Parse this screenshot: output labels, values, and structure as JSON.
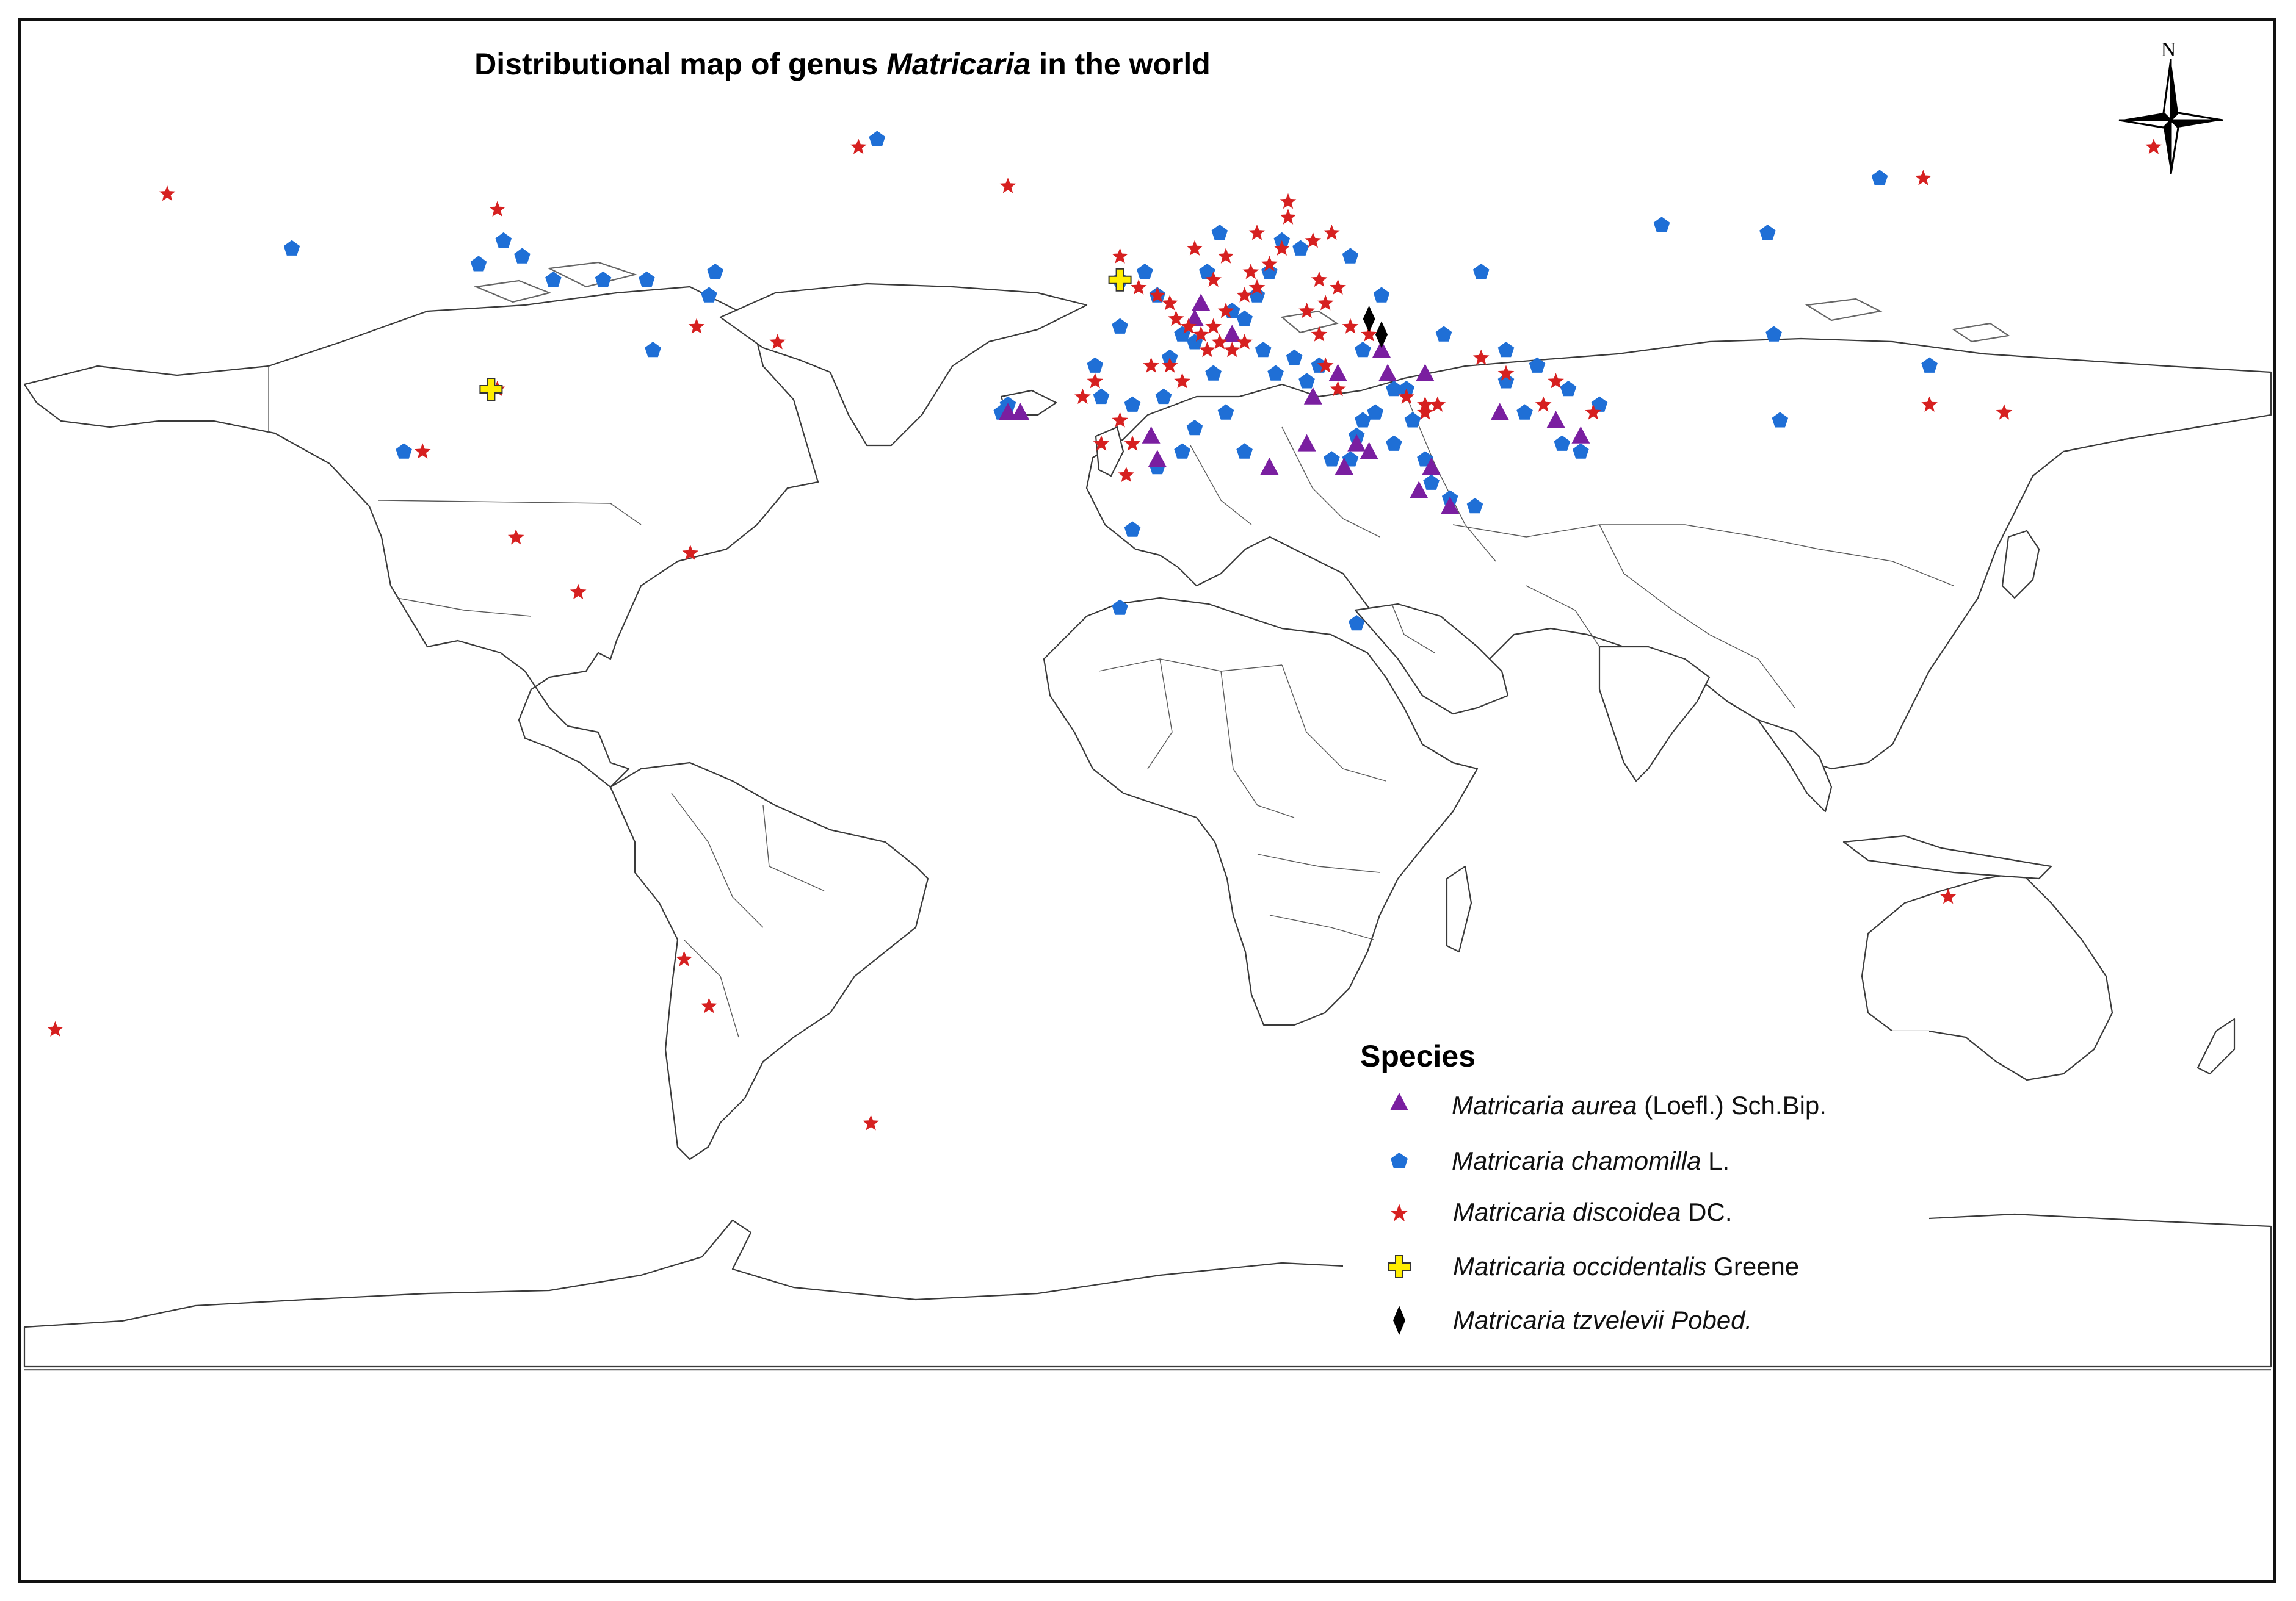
{
  "map": {
    "title_prefix": "Distributional map of genus ",
    "title_genus": "Matricaria",
    "title_suffix": " in the world",
    "north_label": "N"
  },
  "legend": {
    "title": "Species",
    "items": [
      {
        "key": "aurea",
        "italic": "Matricaria aurea",
        "author": " (Loefl.) Sch.Bip.",
        "symbol": "triangle",
        "color": "#7a1fa0"
      },
      {
        "key": "chamomilla",
        "italic": "Matricaria chamomilla",
        "author": " L.",
        "symbol": "pentagon",
        "color": "#1f6fd6"
      },
      {
        "key": "discoidea",
        "italic": "Matricaria discoidea",
        "author": " DC.",
        "symbol": "star",
        "color": "#d62020"
      },
      {
        "key": "occidentalis",
        "italic": "Matricaria occidentalis",
        "author": " Greene",
        "symbol": "cross",
        "color": "#ffee00"
      },
      {
        "key": "tzvelevii",
        "italic": "Matricaria tzvelevii Pobed.",
        "author": "",
        "symbol": "diamond",
        "color": "#000000"
      }
    ]
  },
  "occurrences": {
    "aurea": [
      [
        -20,
        37
      ],
      [
        -18,
        37
      ],
      [
        10,
        49
      ],
      [
        11,
        51
      ],
      [
        16,
        47
      ],
      [
        28,
        33
      ],
      [
        36,
        33
      ],
      [
        40,
        45
      ],
      [
        41,
        42
      ],
      [
        38,
        32
      ],
      [
        34,
        30
      ],
      [
        22,
        30
      ],
      [
        4,
        31
      ],
      [
        3,
        34
      ],
      [
        46,
        27
      ],
      [
        51,
        25
      ],
      [
        59,
        37
      ],
      [
        68,
        36
      ],
      [
        48,
        30
      ],
      [
        47,
        42
      ],
      [
        72,
        34
      ],
      [
        33,
        42
      ],
      [
        29,
        39
      ]
    ],
    "chamomilla": [
      [
        -41,
        72
      ],
      [
        -135,
        58
      ],
      [
        -105,
        56
      ],
      [
        -101,
        59
      ],
      [
        -98,
        57
      ],
      [
        -93,
        54
      ],
      [
        -85,
        54
      ],
      [
        -78,
        54
      ],
      [
        -67,
        55
      ],
      [
        -68,
        52
      ],
      [
        -77,
        45
      ],
      [
        -117,
        32
      ],
      [
        -21,
        37
      ],
      [
        -20,
        38
      ],
      [
        2,
        55
      ],
      [
        -2,
        54
      ],
      [
        4,
        52
      ],
      [
        8,
        47
      ],
      [
        10,
        46
      ],
      [
        13,
        42
      ],
      [
        16,
        50
      ],
      [
        18,
        49
      ],
      [
        20,
        52
      ],
      [
        22,
        55
      ],
      [
        24,
        59
      ],
      [
        12,
        55
      ],
      [
        14,
        60
      ],
      [
        21,
        45
      ],
      [
        23,
        42
      ],
      [
        26,
        44
      ],
      [
        28,
        41
      ],
      [
        30,
        43
      ],
      [
        6,
        44
      ],
      [
        5,
        39
      ],
      [
        0,
        38
      ],
      [
        -5,
        39
      ],
      [
        -6,
        43
      ],
      [
        -2,
        48
      ],
      [
        15,
        37
      ],
      [
        10,
        35
      ],
      [
        18,
        32
      ],
      [
        4,
        30
      ],
      [
        32,
        31
      ],
      [
        35,
        31
      ],
      [
        36,
        34
      ],
      [
        37,
        36
      ],
      [
        39,
        37
      ],
      [
        42,
        40
      ],
      [
        44,
        40
      ],
      [
        45,
        36
      ],
      [
        42,
        33
      ],
      [
        47,
        31
      ],
      [
        48,
        28
      ],
      [
        51,
        26
      ],
      [
        55,
        25
      ],
      [
        60,
        41
      ],
      [
        65,
        43
      ],
      [
        70,
        40
      ],
      [
        75,
        38
      ],
      [
        69,
        33
      ],
      [
        72,
        32
      ],
      [
        63,
        37
      ],
      [
        60,
        45
      ],
      [
        56,
        55
      ],
      [
        50,
        47
      ],
      [
        40,
        52
      ],
      [
        37,
        45
      ],
      [
        27,
        58
      ],
      [
        35,
        57
      ],
      [
        -2,
        12
      ],
      [
        36,
        10
      ],
      [
        85,
        61
      ],
      [
        102,
        60
      ],
      [
        120,
        67
      ],
      [
        128,
        43
      ],
      [
        103,
        47
      ],
      [
        104,
        36
      ],
      [
        8,
        32
      ],
      [
        0,
        22
      ]
    ],
    "discoidea": [
      [
        -155,
        65
      ],
      [
        -102,
        63
      ],
      [
        -70,
        48
      ],
      [
        -57,
        46
      ],
      [
        -102,
        40
      ],
      [
        -114,
        32
      ],
      [
        -99,
        21
      ],
      [
        -89,
        14
      ],
      [
        -71,
        19
      ],
      [
        -44,
        71
      ],
      [
        -20,
        66
      ],
      [
        -2,
        57
      ],
      [
        1,
        53
      ],
      [
        4,
        52
      ],
      [
        6,
        51
      ],
      [
        7,
        49
      ],
      [
        9,
        48
      ],
      [
        11,
        47
      ],
      [
        13,
        48
      ],
      [
        12,
        45
      ],
      [
        14,
        46
      ],
      [
        16,
        45
      ],
      [
        18,
        46
      ],
      [
        15,
        50
      ],
      [
        18,
        52
      ],
      [
        20,
        53
      ],
      [
        19,
        55
      ],
      [
        22,
        56
      ],
      [
        24,
        58
      ],
      [
        20,
        60
      ],
      [
        25,
        62
      ],
      [
        29,
        59
      ],
      [
        32,
        60
      ],
      [
        33,
        53
      ],
      [
        31,
        51
      ],
      [
        28,
        50
      ],
      [
        30,
        47
      ],
      [
        35,
        48
      ],
      [
        38,
        47
      ],
      [
        31,
        43
      ],
      [
        33,
        40
      ],
      [
        44,
        39
      ],
      [
        47,
        37
      ],
      [
        49,
        38
      ],
      [
        68,
        41
      ],
      [
        56,
        44
      ],
      [
        47,
        38
      ],
      [
        60,
        42
      ],
      [
        66,
        38
      ],
      [
        74,
        37
      ],
      [
        8,
        41
      ],
      [
        6,
        43
      ],
      [
        3,
        43
      ],
      [
        -6,
        41
      ],
      [
        -8,
        39
      ],
      [
        -5,
        33
      ],
      [
        0,
        33
      ],
      [
        -1,
        29
      ],
      [
        -2,
        36
      ],
      [
        13,
        54
      ],
      [
        15,
        57
      ],
      [
        10,
        58
      ],
      [
        -72,
        -33
      ],
      [
        -68,
        -39
      ],
      [
        -42,
        -54
      ],
      [
        -173,
        -42
      ],
      [
        131,
        -25
      ],
      [
        127,
        67
      ],
      [
        164,
        71
      ],
      [
        128,
        38
      ],
      [
        140,
        37
      ],
      [
        30,
        54
      ],
      [
        25,
        64
      ]
    ],
    "occidentalis": [
      [
        -103,
        40
      ],
      [
        -2,
        54
      ]
    ],
    "tzvelevii": [
      [
        38,
        49
      ],
      [
        40,
        47
      ]
    ]
  }
}
